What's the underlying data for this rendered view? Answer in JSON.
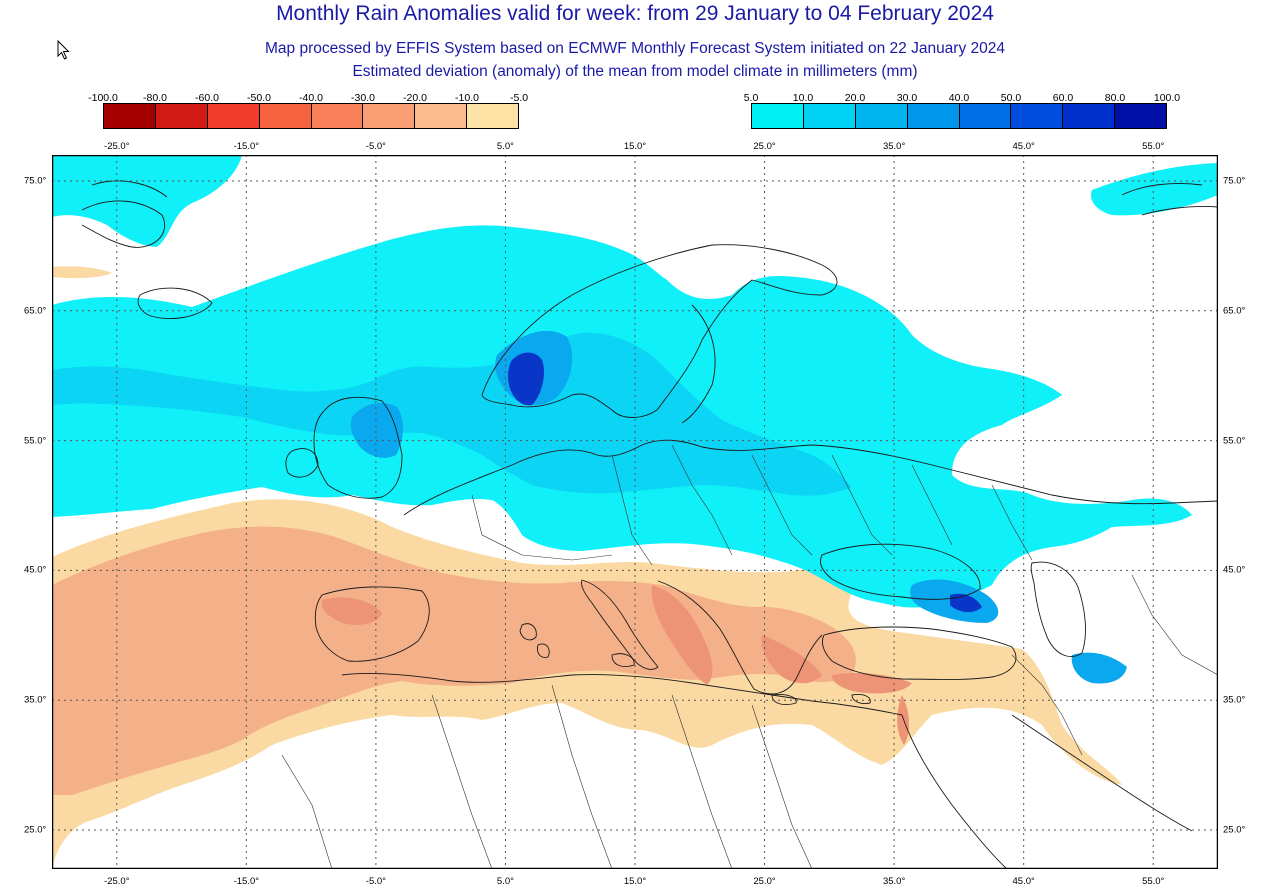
{
  "title": "Monthly Rain Anomalies valid for week: from 29 January to 04 February 2024",
  "subtitle1": "Map processed by EFFIS System based on ECMWF Monthly Forecast System initiated on 22 January 2024",
  "subtitle2": "Estimated deviation (anomaly) of the mean from model climate in millimeters (mm)",
  "legend_negative": {
    "labels": [
      "-100.0",
      "-80.0",
      "-60.0",
      "-50.0",
      "-40.0",
      "-30.0",
      "-20.0",
      "-10.0",
      "-5.0"
    ],
    "colors": [
      "#a50000",
      "#d21a14",
      "#f03c28",
      "#f5643e",
      "#f88159",
      "#fa9f74",
      "#fcbb8c",
      "#fde2a6"
    ]
  },
  "legend_positive": {
    "labels": [
      "5.0",
      "10.0",
      "20.0",
      "30.0",
      "40.0",
      "50.0",
      "60.0",
      "80.0",
      "100.0"
    ],
    "colors": [
      "#00f0f8",
      "#00d2f4",
      "#00b4f0",
      "#0096eb",
      "#0070e6",
      "#004ee0",
      "#0030cc",
      "#0010a6"
    ]
  },
  "lon_ticks": [
    "-25.0°",
    "-15.0°",
    "-5.0°",
    "5.0°",
    "15.0°",
    "25.0°",
    "35.0°",
    "45.0°",
    "55.0°"
  ],
  "lat_ticks": [
    "75.0°",
    "65.0°",
    "55.0°",
    "45.0°",
    "35.0°",
    "25.0°"
  ],
  "map": {
    "lon_range": [
      -30,
      60
    ],
    "lat_range": [
      22,
      77
    ],
    "grid": true,
    "anomaly_colors": {
      "dry_light": "#fbd9a2",
      "dry_mid": "#f4b088",
      "dry_strong": "#ed9477",
      "wet_light": "#10f0f8",
      "wet_mid": "#0cd4f4",
      "wet_strong": "#0aa8ee",
      "wet_peak": "#0a36c8"
    }
  }
}
